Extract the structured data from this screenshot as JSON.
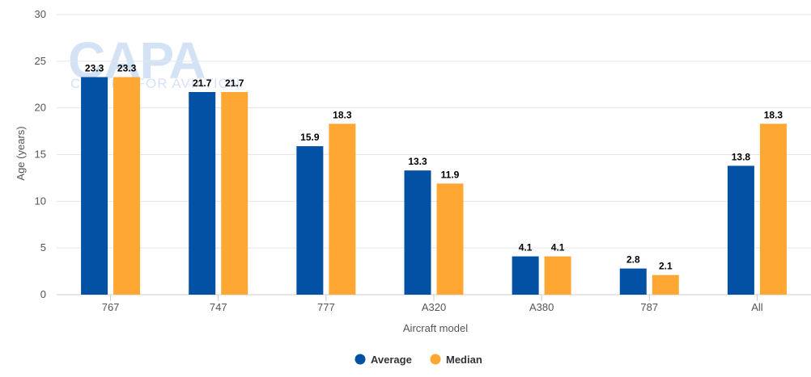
{
  "chart_data": {
    "type": "bar",
    "categories": [
      "767",
      "747",
      "777",
      "A320",
      "A380",
      "787",
      "All"
    ],
    "series": [
      {
        "name": "Average",
        "color": "#0251a5",
        "values": [
          23.3,
          21.7,
          15.9,
          13.3,
          4.1,
          2.8,
          13.8
        ]
      },
      {
        "name": "Median",
        "color": "#ffa733",
        "values": [
          23.3,
          21.7,
          18.3,
          11.9,
          4.1,
          2.1,
          18.3
        ]
      }
    ],
    "xlabel": "Aircraft model",
    "ylabel": "Age (years)",
    "ylim": [
      0,
      30
    ],
    "yticks": [
      0,
      5,
      10,
      15,
      20,
      25,
      30
    ],
    "grid": true,
    "legend_position": "bottom-center",
    "data_labels": true
  },
  "watermark": {
    "main": "CAPA",
    "sub": "CENTRE FOR AVIATION"
  }
}
